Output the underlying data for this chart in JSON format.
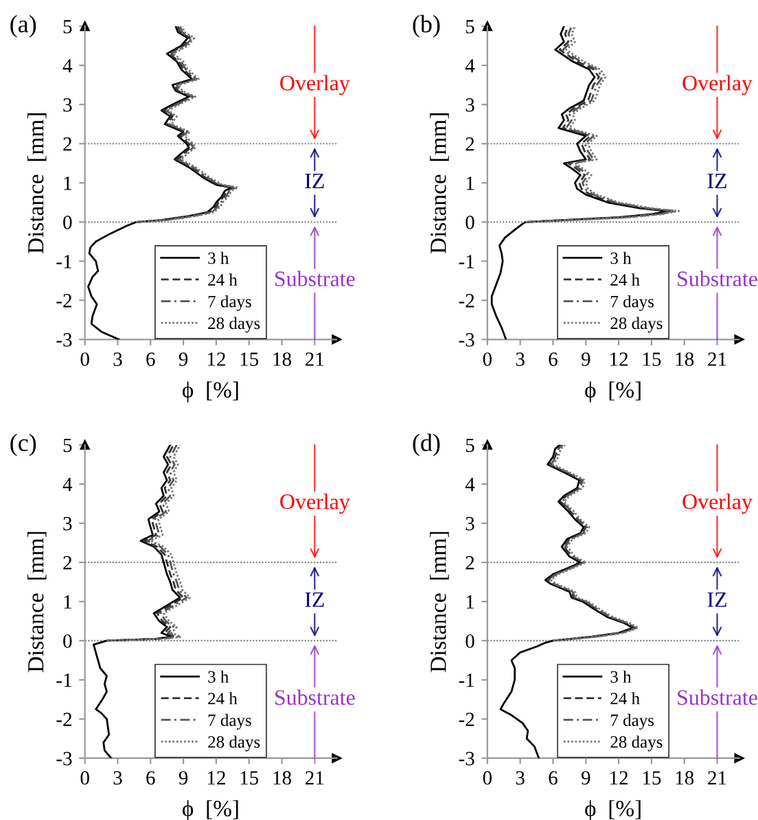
{
  "chart_data": [
    {
      "type": "line",
      "title": "(a)",
      "xlabel": "ϕ  [%]",
      "ylabel": "Distance  [mm]",
      "xlim": [
        0,
        23
      ],
      "ylim": [
        -3,
        5
      ],
      "xticks": [
        0,
        3,
        6,
        9,
        12,
        15,
        18,
        21
      ],
      "yticks": [
        -3,
        -2,
        -1,
        0,
        1,
        2,
        3,
        4,
        5
      ],
      "grid": false,
      "legend": "bottom",
      "marker": "none",
      "series": [
        {
          "name": "3 h",
          "color": "#000000",
          "line_style": "solid",
          "x": [
            3.1,
            1.5,
            0.6,
            0.7,
            1.1,
            0.6,
            0.3,
            0.7,
            1.2,
            1.0,
            0.4,
            0.5,
            1.0,
            2.3,
            3.8,
            4.7,
            7.0,
            9.5,
            11.2,
            11.8,
            12.0,
            12.5,
            12.8,
            13.4,
            12.0,
            11.0,
            10.5,
            9.5,
            8.2,
            8.8,
            9.5,
            9.3,
            8.5,
            9.0,
            7.3,
            7.8,
            7.0,
            8.0,
            9.5,
            8.3,
            8.0,
            9.8,
            8.8,
            8.4,
            7.5,
            8.8,
            9.4,
            8.5,
            8.3
          ],
          "values": [
            -3,
            -2.8,
            -2.6,
            -2.4,
            -2.1,
            -1.9,
            -1.65,
            -1.4,
            -1.25,
            -1,
            -0.8,
            -0.65,
            -0.5,
            -0.3,
            -0.1,
            0,
            0.05,
            0.15,
            0.25,
            0.4,
            0.5,
            0.65,
            0.8,
            0.88,
            0.95,
            1.1,
            1.2,
            1.4,
            1.6,
            1.75,
            1.9,
            2,
            2.2,
            2.3,
            2.5,
            2.7,
            2.85,
            3,
            3.2,
            3.35,
            3.5,
            3.65,
            3.9,
            4.1,
            4.3,
            4.5,
            4.7,
            4.85,
            5
          ]
        },
        {
          "name": "24 h",
          "color": "#333333",
          "line_style": "dashed",
          "x": [
            4.7,
            7.2,
            9.7,
            11.4,
            12.0,
            12.2,
            12.7,
            13.0,
            13.6,
            12.2,
            11.2,
            10.7,
            9.7,
            8.4,
            9.0,
            9.7,
            9.5,
            8.7,
            9.2,
            7.5,
            8.0,
            7.2,
            8.2,
            9.7,
            8.5,
            8.2,
            10.0,
            9.0,
            8.6,
            7.7,
            9.0,
            9.6,
            8.7,
            8.5
          ],
          "values": [
            0,
            0.05,
            0.15,
            0.25,
            0.4,
            0.5,
            0.65,
            0.8,
            0.88,
            0.95,
            1.1,
            1.2,
            1.4,
            1.6,
            1.75,
            1.9,
            2,
            2.2,
            2.3,
            2.5,
            2.7,
            2.85,
            3,
            3.2,
            3.35,
            3.5,
            3.65,
            3.9,
            4.1,
            4.3,
            4.5,
            4.7,
            4.85,
            5
          ]
        },
        {
          "name": "7 days",
          "color": "#555555",
          "line_style": "dashdot",
          "x": [
            4.7,
            7.4,
            9.9,
            11.6,
            12.2,
            12.4,
            12.9,
            13.2,
            13.8,
            12.4,
            11.4,
            10.9,
            9.9,
            8.6,
            9.2,
            9.9,
            9.7,
            8.9,
            9.4,
            7.7,
            8.2,
            7.4,
            8.4,
            9.9,
            8.7,
            8.4,
            10.2,
            9.2,
            8.8,
            7.9,
            9.2,
            9.8,
            8.9,
            8.7
          ],
          "values": [
            0,
            0.05,
            0.15,
            0.25,
            0.4,
            0.5,
            0.65,
            0.8,
            0.88,
            0.95,
            1.1,
            1.2,
            1.4,
            1.6,
            1.75,
            1.9,
            2,
            2.2,
            2.3,
            2.5,
            2.7,
            2.85,
            3,
            3.2,
            3.35,
            3.5,
            3.65,
            3.9,
            4.1,
            4.3,
            4.5,
            4.7,
            4.85,
            5
          ]
        },
        {
          "name": "28 days",
          "color": "#777777",
          "line_style": "dotted",
          "x": [
            4.7,
            7.6,
            10.1,
            11.8,
            12.4,
            12.6,
            13.1,
            13.4,
            14.0,
            12.6,
            11.6,
            11.1,
            10.1,
            8.8,
            9.4,
            10.1,
            9.9,
            9.1,
            9.6,
            7.9,
            8.4,
            7.6,
            8.6,
            10.1,
            8.9,
            8.6,
            10.4,
            9.4,
            9.0,
            8.1,
            9.4,
            10.0,
            9.1,
            8.9
          ],
          "values": [
            0,
            0.05,
            0.15,
            0.25,
            0.4,
            0.5,
            0.65,
            0.8,
            0.88,
            0.95,
            1.1,
            1.2,
            1.4,
            1.6,
            1.75,
            1.9,
            2,
            2.2,
            2.3,
            2.5,
            2.7,
            2.85,
            3,
            3.2,
            3.35,
            3.5,
            3.65,
            3.9,
            4.1,
            4.3,
            4.5,
            4.7,
            4.85,
            5
          ]
        }
      ],
      "ref_lines": [
        {
          "axis": "y",
          "value": 2,
          "color": "#888888",
          "line_style": "dotted"
        },
        {
          "axis": "y",
          "value": 0,
          "color": "#888888",
          "line_style": "dotted"
        }
      ],
      "annotations": [
        "Overlay",
        "IZ",
        "Substrate"
      ]
    },
    {
      "type": "line",
      "title": "(b)",
      "xlabel": "ϕ  [%]",
      "ylabel": "Distance  [mm]",
      "xlim": [
        0,
        23
      ],
      "ylim": [
        -3,
        5
      ],
      "xticks": [
        0,
        3,
        6,
        9,
        12,
        15,
        18,
        21
      ],
      "yticks": [
        -3,
        -2,
        -1,
        0,
        1,
        2,
        3,
        4,
        5
      ],
      "grid": false,
      "legend": "bottom",
      "marker": "none",
      "series": [
        {
          "name": "3 h",
          "color": "#000000",
          "line_style": "solid",
          "x": [
            1.7,
            1.3,
            0.8,
            0.4,
            0.4,
            0.8,
            1.2,
            1.4,
            1.3,
            1.1,
            1.6,
            2.5,
            3.2,
            3.5,
            7,
            12,
            15,
            16.5,
            14,
            11,
            9,
            8.2,
            8,
            8.5,
            7.8,
            7,
            9,
            8.5,
            8.2,
            9,
            6.5,
            7,
            6.8,
            7.5,
            8.8,
            9.3,
            9.8,
            9.3,
            7.8,
            6.2,
            7,
            6.7,
            7
          ],
          "values": [
            -3,
            -2.7,
            -2.4,
            -2.1,
            -1.9,
            -1.6,
            -1.3,
            -1,
            -0.8,
            -0.6,
            -0.4,
            -0.2,
            -0.05,
            0,
            0.05,
            0.12,
            0.2,
            0.28,
            0.35,
            0.5,
            0.7,
            0.85,
            1,
            1.2,
            1.35,
            1.5,
            1.6,
            1.8,
            2,
            2.2,
            2.4,
            2.6,
            2.75,
            2.9,
            3.1,
            3.5,
            3.7,
            3.9,
            4.1,
            4.4,
            4.6,
            4.8,
            5
          ]
        },
        {
          "name": "24 h",
          "color": "#333333",
          "line_style": "dashed",
          "x": [
            3.5,
            7.4,
            12.4,
            15.4,
            16.9,
            14.4,
            11.4,
            9.4,
            8.6,
            8.4,
            8.9,
            8.2,
            7.4,
            9.4,
            8.9,
            8.6,
            9.4,
            6.9,
            7.4,
            7.2,
            7.9,
            9.2,
            9.7,
            10.2,
            9.7,
            8.2,
            6.6,
            7.4,
            7.1,
            7.4
          ],
          "values": [
            0,
            0.05,
            0.12,
            0.2,
            0.28,
            0.35,
            0.5,
            0.7,
            0.85,
            1,
            1.2,
            1.35,
            1.5,
            1.6,
            1.8,
            2,
            2.2,
            2.4,
            2.6,
            2.75,
            2.9,
            3.1,
            3.5,
            3.7,
            3.9,
            4.1,
            4.4,
            4.6,
            4.8,
            5
          ]
        },
        {
          "name": "7 days",
          "color": "#555555",
          "line_style": "dashdot",
          "x": [
            3.5,
            7.7,
            12.7,
            15.7,
            17.2,
            14.7,
            11.7,
            9.7,
            8.9,
            8.7,
            9.2,
            8.5,
            7.7,
            9.7,
            9.2,
            8.9,
            9.7,
            7.2,
            7.7,
            7.5,
            8.2,
            9.5,
            10.0,
            10.5,
            10.0,
            8.5,
            6.9,
            7.7,
            7.4,
            7.7
          ],
          "values": [
            0,
            0.05,
            0.12,
            0.2,
            0.28,
            0.35,
            0.5,
            0.7,
            0.85,
            1,
            1.2,
            1.35,
            1.5,
            1.6,
            1.8,
            2,
            2.2,
            2.4,
            2.6,
            2.75,
            2.9,
            3.1,
            3.5,
            3.7,
            3.9,
            4.1,
            4.4,
            4.6,
            4.8,
            5
          ]
        },
        {
          "name": "28 days",
          "color": "#777777",
          "line_style": "dotted",
          "x": [
            3.5,
            8,
            13,
            16,
            17.5,
            15,
            12,
            10,
            9.2,
            9,
            9.5,
            8.8,
            8,
            10,
            9.5,
            9.2,
            10,
            7.5,
            8,
            7.8,
            8.5,
            9.8,
            10.3,
            10.8,
            10.3,
            8.8,
            7.2,
            8,
            7.7,
            8
          ],
          "values": [
            0,
            0.05,
            0.12,
            0.2,
            0.28,
            0.35,
            0.5,
            0.7,
            0.85,
            1,
            1.2,
            1.35,
            1.5,
            1.6,
            1.8,
            2,
            2.2,
            2.4,
            2.6,
            2.75,
            2.9,
            3.1,
            3.5,
            3.7,
            3.9,
            4.1,
            4.4,
            4.6,
            4.8,
            5
          ]
        }
      ],
      "ref_lines": [
        {
          "axis": "y",
          "value": 2,
          "color": "#888888",
          "line_style": "dotted"
        },
        {
          "axis": "y",
          "value": 0,
          "color": "#888888",
          "line_style": "dotted"
        }
      ],
      "annotations": [
        "Overlay",
        "IZ",
        "Substrate"
      ]
    },
    {
      "type": "line",
      "title": "(c)",
      "xlabel": "ϕ  [%]",
      "ylabel": "Distance  [mm]",
      "xlim": [
        0,
        23
      ],
      "ylim": [
        -3,
        5
      ],
      "xticks": [
        0,
        3,
        6,
        9,
        12,
        15,
        18,
        21
      ],
      "yticks": [
        -3,
        -2,
        -1,
        0,
        1,
        2,
        3,
        4,
        5
      ],
      "grid": false,
      "legend": "bottom",
      "marker": "none",
      "series": [
        {
          "name": "3 h",
          "color": "#000000",
          "line_style": "solid",
          "x": [
            2.4,
            1.8,
            1.7,
            2.2,
            2.1,
            2.0,
            1.5,
            1.0,
            1.6,
            2.0,
            1.8,
            2.0,
            1.4,
            1.2,
            1.0,
            0.8,
            2.0,
            6.5,
            7.9,
            7.0,
            7.5,
            6.8,
            6.3,
            7.5,
            8.7,
            8.0,
            7.8,
            7.5,
            7.2,
            7.0,
            6.3,
            5.1,
            6.2,
            6.0,
            5.8,
            6.8,
            6.5,
            7.2,
            7.0,
            7.5,
            7.2,
            7.6,
            7.2,
            7.8
          ],
          "values": [
            -3,
            -2.8,
            -2.6,
            -2.4,
            -2.2,
            -2,
            -1.85,
            -1.75,
            -1.5,
            -1.3,
            -1.1,
            -0.9,
            -0.7,
            -0.5,
            -0.3,
            -0.1,
            0,
            0.05,
            0.1,
            0.2,
            0.35,
            0.5,
            0.7,
            0.9,
            1.1,
            1.3,
            1.5,
            1.7,
            2,
            2.2,
            2.4,
            2.55,
            2.7,
            2.9,
            3.1,
            3.3,
            3.5,
            3.7,
            3.9,
            4.1,
            4.3,
            4.5,
            4.7,
            5
          ]
        },
        {
          "name": "24 h",
          "color": "#333333",
          "line_style": "dashed",
          "x": [
            2.0,
            6.8,
            8.2,
            7.3,
            7.8,
            7.1,
            6.6,
            7.8,
            9.0,
            8.3,
            8.1,
            7.8,
            7.5,
            7.3,
            6.6,
            5.4,
            6.5,
            6.3,
            6.1,
            7.1,
            6.8,
            7.5,
            7.3,
            7.8,
            7.5,
            7.9,
            7.5,
            8.1
          ],
          "values": [
            0,
            0.05,
            0.1,
            0.2,
            0.35,
            0.5,
            0.7,
            0.9,
            1.1,
            1.3,
            1.5,
            1.7,
            2,
            2.2,
            2.4,
            2.55,
            2.7,
            2.9,
            3.1,
            3.3,
            3.5,
            3.7,
            3.9,
            4.1,
            4.3,
            4.5,
            4.7,
            5
          ]
        },
        {
          "name": "7 days",
          "color": "#555555",
          "line_style": "dashdot",
          "x": [
            2.0,
            7.1,
            8.5,
            7.6,
            8.1,
            7.4,
            6.9,
            8.1,
            9.3,
            8.6,
            8.4,
            8.1,
            7.8,
            7.6,
            6.9,
            5.7,
            6.8,
            6.6,
            6.4,
            7.4,
            7.1,
            7.8,
            7.6,
            8.1,
            7.8,
            8.2,
            7.8,
            8.4
          ],
          "values": [
            0,
            0.05,
            0.1,
            0.2,
            0.35,
            0.5,
            0.7,
            0.9,
            1.1,
            1.3,
            1.5,
            1.7,
            2,
            2.2,
            2.4,
            2.55,
            2.7,
            2.9,
            3.1,
            3.3,
            3.5,
            3.7,
            3.9,
            4.1,
            4.3,
            4.5,
            4.7,
            5
          ]
        },
        {
          "name": "28 days",
          "color": "#777777",
          "line_style": "dotted",
          "x": [
            2.0,
            7.4,
            8.8,
            7.9,
            8.4,
            7.7,
            7.2,
            8.4,
            9.6,
            8.9,
            8.7,
            8.4,
            8.1,
            7.9,
            7.2,
            6.0,
            7.1,
            6.9,
            6.7,
            7.7,
            7.4,
            8.1,
            7.9,
            8.4,
            8.1,
            8.5,
            8.1,
            8.7
          ],
          "values": [
            0,
            0.05,
            0.1,
            0.2,
            0.35,
            0.5,
            0.7,
            0.9,
            1.1,
            1.3,
            1.5,
            1.7,
            2,
            2.2,
            2.4,
            2.55,
            2.7,
            2.9,
            3.1,
            3.3,
            3.5,
            3.7,
            3.9,
            4.1,
            4.3,
            4.5,
            4.7,
            5
          ]
        }
      ],
      "ref_lines": [
        {
          "axis": "y",
          "value": 2,
          "color": "#888888",
          "line_style": "dotted"
        },
        {
          "axis": "y",
          "value": 0,
          "color": "#888888",
          "line_style": "dotted"
        }
      ],
      "annotations": [
        "Overlay",
        "IZ",
        "Substrate"
      ]
    },
    {
      "type": "line",
      "title": "(d)",
      "xlabel": "ϕ  [%]",
      "ylabel": "Distance  [mm]",
      "xlim": [
        0,
        23
      ],
      "ylim": [
        -3,
        5
      ],
      "xticks": [
        0,
        3,
        6,
        9,
        12,
        15,
        18,
        21
      ],
      "yticks": [
        -3,
        -2,
        -1,
        0,
        1,
        2,
        3,
        4,
        5
      ],
      "grid": false,
      "legend": "bottom",
      "marker": "none",
      "series": [
        {
          "name": "3 h",
          "color": "#000000",
          "line_style": "solid",
          "x": [
            4.7,
            4.3,
            3.6,
            3.7,
            3.2,
            2.2,
            1.2,
            1.5,
            2.2,
            2.5,
            2.5,
            2.2,
            3.0,
            4.5,
            5.3,
            6.0,
            9.5,
            12,
            13.3,
            12.5,
            11,
            9.8,
            8.7,
            7.7,
            7.5,
            5.8,
            5.3,
            6.0,
            7.3,
            8.5,
            7.5,
            6.8,
            7.3,
            8.5,
            8.8,
            8.0,
            7.4,
            6.5,
            7.0,
            8.2,
            8.4,
            7.0,
            5.5,
            6.0,
            6.2,
            6.6
          ],
          "values": [
            -3,
            -2.7,
            -2.5,
            -2.3,
            -2.1,
            -1.9,
            -1.75,
            -1.6,
            -1.3,
            -1,
            -0.7,
            -0.5,
            -0.3,
            -0.15,
            -0.05,
            0,
            0.1,
            0.2,
            0.33,
            0.45,
            0.6,
            0.8,
            1,
            1.1,
            1.25,
            1.45,
            1.55,
            1.7,
            1.85,
            2,
            2.15,
            2.4,
            2.6,
            2.75,
            2.9,
            3.1,
            3.3,
            3.55,
            3.7,
            3.9,
            4.1,
            4.3,
            4.5,
            4.7,
            4.9,
            5
          ]
        },
        {
          "name": "24 h",
          "color": "#333333",
          "line_style": "dashed",
          "x": [
            6.0,
            9.7,
            12.2,
            13.5,
            12.7,
            11.2,
            10.0,
            8.9,
            7.9,
            7.7,
            6.0,
            5.5,
            6.2,
            7.5,
            8.7,
            7.7,
            7.0,
            7.5,
            8.7,
            9.0,
            8.2,
            7.6,
            6.7,
            7.2,
            8.4,
            8.6,
            7.2,
            5.7,
            6.2,
            6.4,
            6.8
          ],
          "values": [
            0,
            0.1,
            0.2,
            0.33,
            0.45,
            0.6,
            0.8,
            1,
            1.1,
            1.25,
            1.45,
            1.55,
            1.7,
            1.85,
            2,
            2.15,
            2.4,
            2.6,
            2.75,
            2.9,
            3.1,
            3.3,
            3.55,
            3.7,
            3.9,
            4.1,
            4.3,
            4.5,
            4.7,
            4.9,
            5
          ]
        },
        {
          "name": "7 days",
          "color": "#555555",
          "line_style": "dashdot",
          "x": [
            6.0,
            9.8,
            12.3,
            13.6,
            12.8,
            11.3,
            10.1,
            9.0,
            8.0,
            7.8,
            6.1,
            5.6,
            6.3,
            7.6,
            8.8,
            7.8,
            7.1,
            7.6,
            8.8,
            9.1,
            8.3,
            7.7,
            6.8,
            7.3,
            8.5,
            8.7,
            7.3,
            5.8,
            6.3,
            6.5,
            6.9
          ],
          "values": [
            0,
            0.1,
            0.2,
            0.33,
            0.45,
            0.6,
            0.8,
            1,
            1.1,
            1.25,
            1.45,
            1.55,
            1.7,
            1.85,
            2,
            2.15,
            2.4,
            2.6,
            2.75,
            2.9,
            3.1,
            3.3,
            3.55,
            3.7,
            3.9,
            4.1,
            4.3,
            4.5,
            4.7,
            4.9,
            5
          ]
        },
        {
          "name": "28 days",
          "color": "#777777",
          "line_style": "dotted",
          "x": [
            6.0,
            10.0,
            12.5,
            13.8,
            13.0,
            11.5,
            10.3,
            9.2,
            8.2,
            8.0,
            6.3,
            5.8,
            6.5,
            7.8,
            9.0,
            8.0,
            7.3,
            7.8,
            9.0,
            9.3,
            8.5,
            7.9,
            7.0,
            7.5,
            8.7,
            8.9,
            7.5,
            6.0,
            6.5,
            6.7,
            7.1
          ],
          "values": [
            0,
            0.1,
            0.2,
            0.33,
            0.45,
            0.6,
            0.8,
            1,
            1.1,
            1.25,
            1.45,
            1.55,
            1.7,
            1.85,
            2,
            2.15,
            2.4,
            2.6,
            2.75,
            2.9,
            3.1,
            3.3,
            3.55,
            3.7,
            3.9,
            4.1,
            4.3,
            4.5,
            4.7,
            4.9,
            5
          ]
        }
      ],
      "ref_lines": [
        {
          "axis": "y",
          "value": 2,
          "color": "#888888",
          "line_style": "dotted"
        },
        {
          "axis": "y",
          "value": 0,
          "color": "#888888",
          "line_style": "dotted"
        }
      ],
      "annotations": [
        "Overlay",
        "IZ",
        "Substrate"
      ]
    }
  ]
}
